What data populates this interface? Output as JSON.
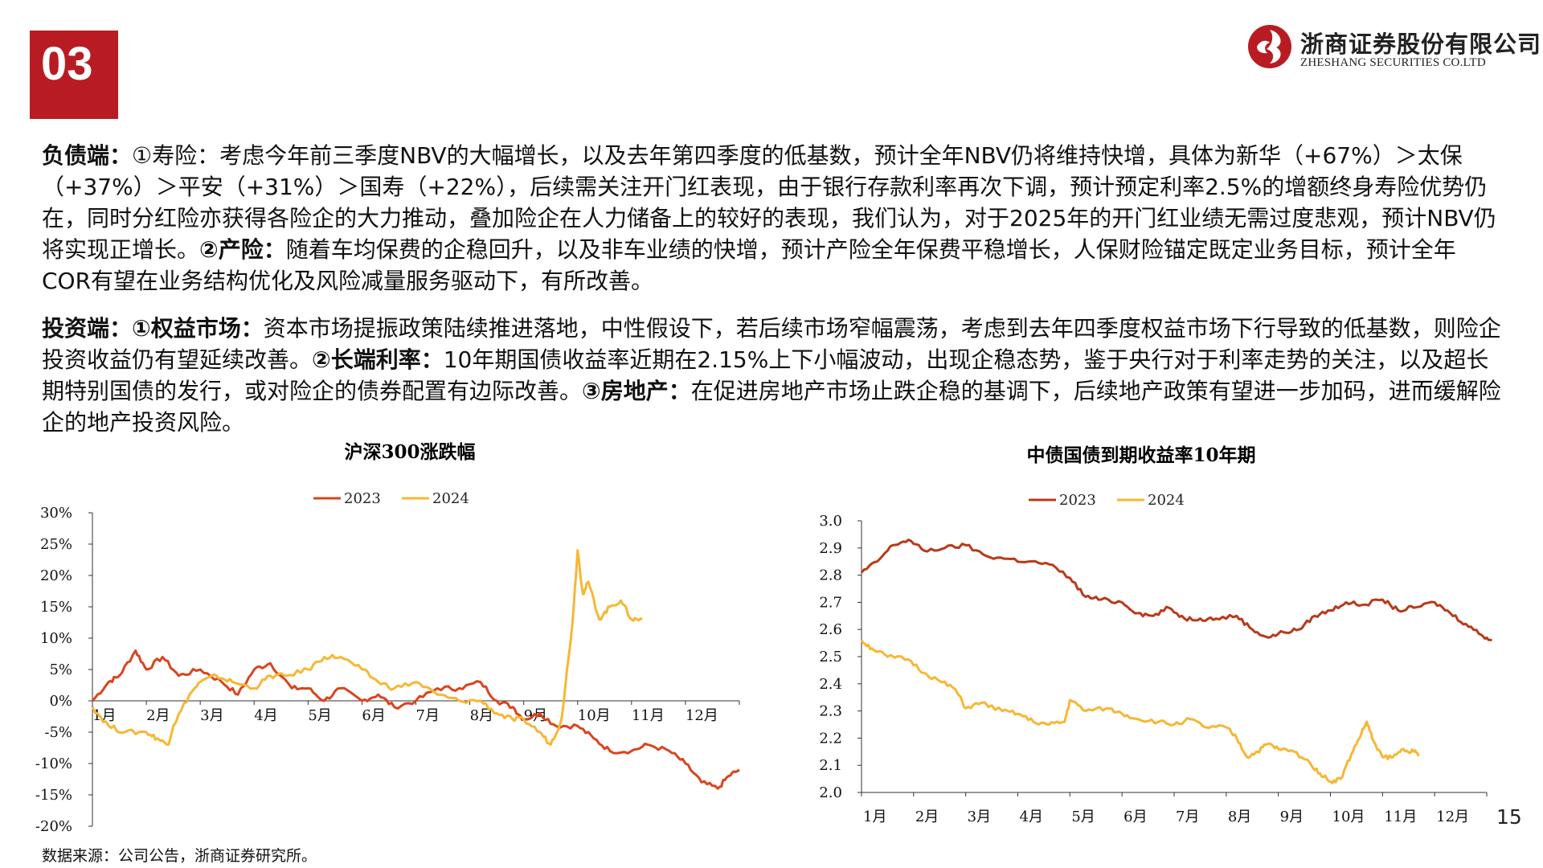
{
  "section_number": "03",
  "logo": {
    "cn": "浙商证券股份有限公司",
    "en": "ZHESHANG SECURITIES CO.LTD"
  },
  "paragraph1": {
    "lead": "负债端：",
    "t1": "①寿险：考虑今年前三季度NBV的大幅增长，以及去年第四季度的低基数，预计全年NBV仍将维持快增，具体为新华（+67%）＞太保（+37%）＞平安（+31%）＞国寿（+22%），后续需关注开门红表现，由于银行存款利率再次下调，预计预定利率2.5%的增额终身寿险优势仍在，同时分红险亦获得各险企的大力推动，叠加险企在人力储备上的较好的表现，我们认为，对于2025年的开门红业绩无需过度悲观，预计NBV仍将实现正增长。",
    "b2": "②产险：",
    "t2": "随着车均保费的企稳回升，以及非车业绩的快增，预计产险全年保费平稳增长，人保财险锚定既定业务目标，预计全年COR有望在业务结构优化及风险减量服务驱动下，有所改善。"
  },
  "paragraph2": {
    "lead": "投资端：",
    "b1": "①权益市场：",
    "t1": "资本市场提振政策陆续推进落地，中性假设下，若后续市场窄幅震荡，考虑到去年四季度权益市场下行导致的低基数，则险企投资收益仍有望延续改善。",
    "b2": "②长端利率：",
    "t2": "10年期国债收益率近期在2.15%上下小幅波动，出现企稳态势，鉴于央行对于利率走势的关注，以及超长期特别国债的发行，或对险企的债券配置有边际改善。",
    "b3": "③房地产：",
    "t3": "在促进房地产市场止跌企稳的基调下，后续地产政策有望进一步加码，进而缓解险企的地产投资风险。"
  },
  "colors": {
    "accent": "#b81c22",
    "series_2023": "#d9441f",
    "series_2024": "#f6b733",
    "bond_2023": "#b8391a"
  },
  "chart_data": [
    {
      "type": "line",
      "title": "沪深300涨跌幅",
      "x": [
        "1月",
        "2月",
        "3月",
        "4月",
        "5月",
        "6月",
        "7月",
        "8月",
        "9月",
        "10月",
        "11月",
        "12月"
      ],
      "y_ticks": [
        "30%",
        "25%",
        "20%",
        "15%",
        "10%",
        "5%",
        "0%",
        "-5%",
        "-10%",
        "-15%",
        "-20%"
      ],
      "ylim": [
        -20,
        30
      ],
      "unit": "%",
      "legend_position": "top-center",
      "series": [
        {
          "name": "2023",
          "color": "#d9441f",
          "points": [
            [
              0,
              0
            ],
            [
              0.3,
              3
            ],
            [
              0.5,
              4
            ],
            [
              0.8,
              8
            ],
            [
              1.0,
              5
            ],
            [
              1.3,
              7
            ],
            [
              1.6,
              4
            ],
            [
              2.0,
              5
            ],
            [
              2.4,
              3
            ],
            [
              2.7,
              1
            ],
            [
              3.0,
              5
            ],
            [
              3.3,
              6
            ],
            [
              3.7,
              2
            ],
            [
              4.0,
              2
            ],
            [
              4.3,
              0
            ],
            [
              4.6,
              2
            ],
            [
              5.0,
              0
            ],
            [
              5.3,
              1
            ],
            [
              5.6,
              -1
            ],
            [
              6.0,
              0
            ],
            [
              6.4,
              2
            ],
            [
              6.8,
              2
            ],
            [
              7.2,
              3
            ],
            [
              7.5,
              0
            ],
            [
              7.8,
              -1
            ],
            [
              8.0,
              -3
            ],
            [
              8.3,
              -2
            ],
            [
              8.6,
              -4
            ],
            [
              9.0,
              -4
            ],
            [
              9.3,
              -6
            ],
            [
              9.6,
              -8
            ],
            [
              10.0,
              -8
            ],
            [
              10.3,
              -7
            ],
            [
              10.7,
              -8
            ],
            [
              11.0,
              -10
            ],
            [
              11.3,
              -13
            ],
            [
              11.6,
              -14
            ],
            [
              11.8,
              -12
            ],
            [
              12.0,
              -11
            ]
          ]
        },
        {
          "name": "2024",
          "color": "#f6b733",
          "points": [
            [
              0,
              -1
            ],
            [
              0.3,
              -4
            ],
            [
              0.6,
              -5
            ],
            [
              1.0,
              -5
            ],
            [
              1.2,
              -6
            ],
            [
              1.4,
              -7
            ],
            [
              1.5,
              -4
            ],
            [
              1.8,
              1
            ],
            [
              2.0,
              3
            ],
            [
              2.3,
              4
            ],
            [
              2.6,
              3
            ],
            [
              3.0,
              2
            ],
            [
              3.3,
              4
            ],
            [
              3.6,
              4
            ],
            [
              4.0,
              5
            ],
            [
              4.3,
              7
            ],
            [
              4.6,
              7
            ],
            [
              5.0,
              5
            ],
            [
              5.3,
              3
            ],
            [
              5.6,
              2
            ],
            [
              6.0,
              3
            ],
            [
              6.4,
              1
            ],
            [
              6.8,
              0
            ],
            [
              7.2,
              0
            ],
            [
              7.5,
              -2
            ],
            [
              7.8,
              -3
            ],
            [
              8.0,
              -3
            ],
            [
              8.3,
              -5
            ],
            [
              8.5,
              -7
            ],
            [
              8.7,
              -3
            ],
            [
              8.9,
              12
            ],
            [
              9.0,
              24
            ],
            [
              9.1,
              17
            ],
            [
              9.2,
              19
            ],
            [
              9.4,
              13
            ],
            [
              9.6,
              15
            ],
            [
              9.8,
              16
            ],
            [
              10.0,
              13
            ],
            [
              10.2,
              13
            ]
          ]
        }
      ]
    },
    {
      "type": "line",
      "title": "中债国债到期收益率10年期",
      "x": [
        "1月",
        "2月",
        "3月",
        "4月",
        "5月",
        "6月",
        "7月",
        "8月",
        "9月",
        "10月",
        "11月",
        "12月"
      ],
      "y_ticks": [
        "3.0",
        "2.9",
        "2.8",
        "2.7",
        "2.6",
        "2.5",
        "2.4",
        "2.3",
        "2.2",
        "2.1",
        "2.0"
      ],
      "ylim": [
        2.0,
        3.0
      ],
      "legend_position": "top-center",
      "series": [
        {
          "name": "2023",
          "color": "#b8391a",
          "points": [
            [
              0,
              2.81
            ],
            [
              0.3,
              2.85
            ],
            [
              0.6,
              2.91
            ],
            [
              0.9,
              2.93
            ],
            [
              1.2,
              2.89
            ],
            [
              1.6,
              2.9
            ],
            [
              2.0,
              2.91
            ],
            [
              2.4,
              2.87
            ],
            [
              2.8,
              2.86
            ],
            [
              3.2,
              2.85
            ],
            [
              3.6,
              2.84
            ],
            [
              4.0,
              2.79
            ],
            [
              4.3,
              2.72
            ],
            [
              4.6,
              2.71
            ],
            [
              5.0,
              2.7
            ],
            [
              5.3,
              2.66
            ],
            [
              5.6,
              2.65
            ],
            [
              5.9,
              2.68
            ],
            [
              6.2,
              2.64
            ],
            [
              6.5,
              2.64
            ],
            [
              6.8,
              2.64
            ],
            [
              7.2,
              2.65
            ],
            [
              7.5,
              2.6
            ],
            [
              7.8,
              2.57
            ],
            [
              8.1,
              2.59
            ],
            [
              8.4,
              2.6
            ],
            [
              8.7,
              2.65
            ],
            [
              9.0,
              2.67
            ],
            [
              9.3,
              2.7
            ],
            [
              9.6,
              2.69
            ],
            [
              10.0,
              2.71
            ],
            [
              10.3,
              2.67
            ],
            [
              10.6,
              2.68
            ],
            [
              11.0,
              2.7
            ],
            [
              11.3,
              2.66
            ],
            [
              11.6,
              2.62
            ],
            [
              11.9,
              2.58
            ],
            [
              12.1,
              2.56
            ]
          ]
        },
        {
          "name": "2024",
          "color": "#f6b733",
          "points": [
            [
              0,
              2.56
            ],
            [
              0.2,
              2.53
            ],
            [
              0.5,
              2.5
            ],
            [
              0.9,
              2.49
            ],
            [
              1.2,
              2.44
            ],
            [
              1.5,
              2.41
            ],
            [
              1.8,
              2.38
            ],
            [
              2.0,
              2.31
            ],
            [
              2.3,
              2.33
            ],
            [
              2.7,
              2.3
            ],
            [
              3.0,
              2.29
            ],
            [
              3.3,
              2.26
            ],
            [
              3.6,
              2.25
            ],
            [
              3.9,
              2.26
            ],
            [
              4.0,
              2.34
            ],
            [
              4.3,
              2.3
            ],
            [
              4.7,
              2.31
            ],
            [
              5.0,
              2.29
            ],
            [
              5.3,
              2.27
            ],
            [
              5.7,
              2.26
            ],
            [
              6.0,
              2.25
            ],
            [
              6.3,
              2.27
            ],
            [
              6.6,
              2.24
            ],
            [
              7.0,
              2.24
            ],
            [
              7.2,
              2.2
            ],
            [
              7.4,
              2.13
            ],
            [
              7.6,
              2.15
            ],
            [
              7.8,
              2.18
            ],
            [
              8.0,
              2.16
            ],
            [
              8.3,
              2.15
            ],
            [
              8.6,
              2.11
            ],
            [
              8.8,
              2.07
            ],
            [
              9.0,
              2.04
            ],
            [
              9.2,
              2.05
            ],
            [
              9.4,
              2.14
            ],
            [
              9.6,
              2.22
            ],
            [
              9.7,
              2.26
            ],
            [
              9.8,
              2.2
            ],
            [
              10.0,
              2.13
            ],
            [
              10.2,
              2.13
            ],
            [
              10.4,
              2.16
            ],
            [
              10.6,
              2.15
            ],
            [
              10.7,
              2.14
            ]
          ]
        }
      ]
    }
  ],
  "source": "数据来源：公司公告，浙商证券研究所。",
  "page_number": "15"
}
